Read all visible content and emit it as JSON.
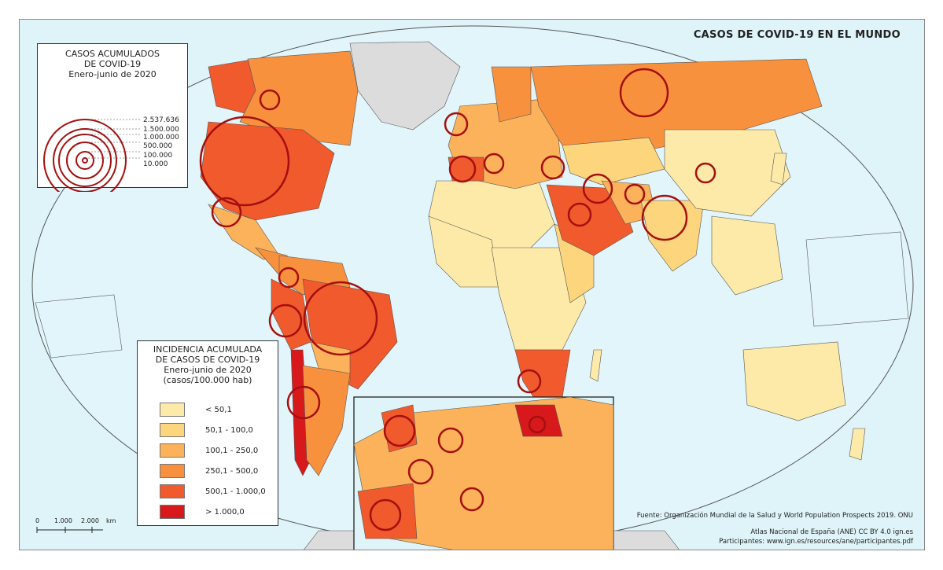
{
  "title": "CASOS DE COVID-19 EN EL MUNDO",
  "colors": {
    "ocean": "#dff4f8",
    "no_data": "#dcdcdc",
    "circle_stroke": "#a50f0f",
    "class_1": "#fdeaa8",
    "class_2": "#fdd57c",
    "class_3": "#fbb25a",
    "class_4": "#f7913e",
    "class_5": "#f05a2c",
    "class_6": "#d7191c"
  },
  "proportional_legend": {
    "title_lines": [
      "CASOS ACUMULADOS",
      "DE COVID-19",
      "Enero-junio de 2020"
    ],
    "values": [
      "2.537.636",
      "1.500.000",
      "1.000.000",
      "500.000",
      "100.000",
      "10.000"
    ]
  },
  "choropleth_legend": {
    "title_lines": [
      "INCIDENCIA ACUMULADA",
      "DE CASOS DE COVID-19",
      "Enero-junio de 2020",
      "(casos/100.000 hab)"
    ],
    "classes": [
      "< 50,1",
      "50,1 - 100,0",
      "100,1 - 250,0",
      "250,1 - 500,0",
      "500,1 - 1.000,0",
      "> 1.000,0"
    ]
  },
  "scale_bar": {
    "labels": [
      "0",
      "1.000",
      "2.000",
      "km"
    ]
  },
  "source": "Fuente: Organización Mundial de la Salud y World Population Prospects 2019. ONU",
  "credits": [
    "Atlas Nacional de España (ANE) CC BY 4.0 ign.es",
    "Participantes: www.ign.es/resources/ane/participantes.pdf"
  ]
}
